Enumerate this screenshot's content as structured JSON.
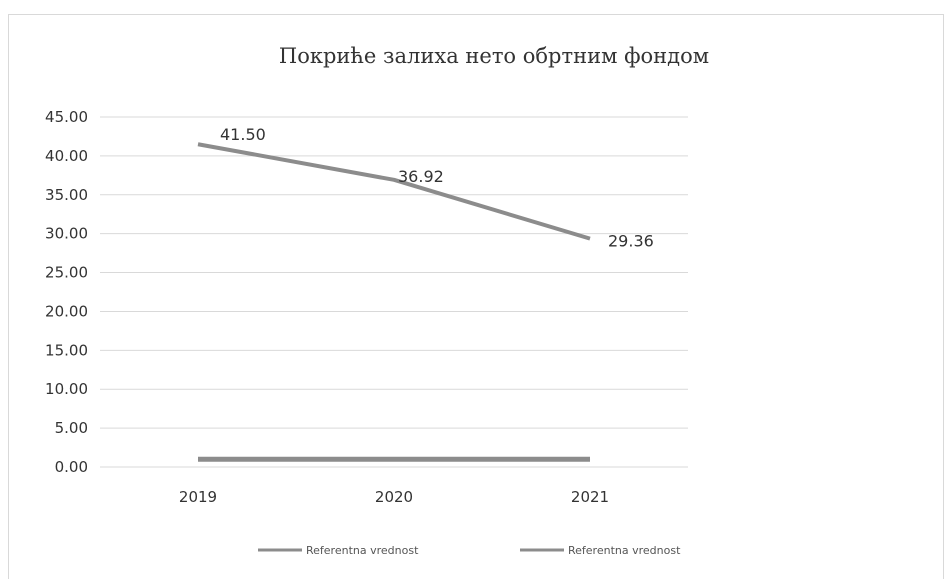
{
  "chart_data": {
    "type": "line",
    "title": "Покриће залиха нето обртним фондом",
    "categories": [
      "2019",
      "2020",
      "2021"
    ],
    "y_ticks": [
      "0.00",
      "5.00",
      "10.00",
      "15.00",
      "20.00",
      "25.00",
      "30.00",
      "35.00",
      "40.00",
      "45.00"
    ],
    "ylim": [
      0,
      45
    ],
    "grid": true,
    "legend_position": "bottom",
    "series": [
      {
        "name": "Referentna vrednost",
        "values": [
          41.5,
          36.92,
          29.36
        ],
        "data_labels": [
          "41.50",
          "36.92",
          "29.36"
        ],
        "color": "#8c8c8c"
      },
      {
        "name": "Referentna vrednost",
        "values": [
          1.0,
          1.0,
          1.0
        ],
        "color": "#8c8c8c"
      }
    ]
  }
}
